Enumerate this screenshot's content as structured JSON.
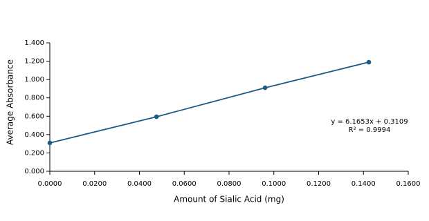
{
  "chart_data": {
    "type": "line",
    "x_label": "Amount of Sialic Acid (mg)",
    "y_label": "Average Absorbance",
    "x": [
      0,
      0.0476,
      0.0961,
      0.1424
    ],
    "series": [
      {
        "name": "Average Absorbance",
        "color": "#1b5a84",
        "values": [
          0.309,
          0.594,
          0.91,
          1.189
        ]
      }
    ],
    "annotations": [
      "y = 6.1653x + 0.3109",
      "R² = 0.9994"
    ],
    "xlim": [
      0,
      0.16
    ],
    "xticks": [
      {
        "value": 0,
        "label": "0.0000"
      },
      {
        "value": 0.02,
        "label": "0.0200"
      },
      {
        "value": 0.04,
        "label": "0.0400"
      },
      {
        "value": 0.06,
        "label": "0.0600"
      },
      {
        "value": 0.08,
        "label": "0.0800"
      },
      {
        "value": 0.1,
        "label": "0.1000"
      },
      {
        "value": 0.12,
        "label": "0.1200"
      },
      {
        "value": 0.14,
        "label": "0.1400"
      },
      {
        "value": 0.16,
        "label": "0.1600"
      }
    ],
    "ylim": [
      0,
      1.4
    ],
    "yticks": [
      {
        "value": 0,
        "label": "0.000"
      },
      {
        "value": 0.2,
        "label": "0.200"
      },
      {
        "value": 0.4,
        "label": "0.400"
      },
      {
        "value": 0.6,
        "label": "0.600"
      },
      {
        "value": 0.8,
        "label": "0.800"
      },
      {
        "value": 1,
        "label": "1.000"
      },
      {
        "value": 1.2,
        "label": "1.200"
      },
      {
        "value": 1.4,
        "label": "1.400"
      }
    ]
  }
}
